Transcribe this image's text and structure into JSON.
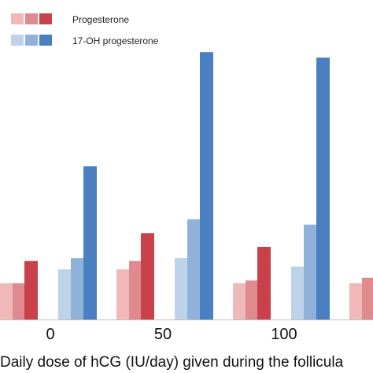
{
  "chart_data": {
    "type": "bar",
    "categories": [
      "0",
      "50",
      "100",
      ""
    ],
    "xlabel": "Daily dose of hCG (IU/day) given during the follicula",
    "legend": [
      {
        "name": "Progesterone",
        "colors": [
          "#f0b8b8",
          "#de8a8e",
          "#c9424b"
        ]
      },
      {
        "name": "17-OH progesterone",
        "colors": [
          "#bdd3ea",
          "#8fb2da",
          "#4a7fc1"
        ]
      }
    ],
    "series": [
      {
        "group": "Progesterone",
        "color": "#f0b8b8",
        "values": [
          1.3,
          1.8,
          1.3,
          1.3
        ]
      },
      {
        "group": "Progesterone",
        "color": "#de8a8e",
        "values": [
          1.3,
          2.1,
          1.4,
          1.5
        ]
      },
      {
        "group": "Progesterone",
        "color": "#c9424b",
        "values": [
          2.1,
          3.1,
          2.6,
          null
        ]
      },
      {
        "group": "17-OH progesterone",
        "color": "#bdd3ea",
        "values": [
          1.8,
          2.2,
          1.9,
          null
        ]
      },
      {
        "group": "17-OH progesterone",
        "color": "#8fb2da",
        "values": [
          2.2,
          3.6,
          3.4,
          null
        ]
      },
      {
        "group": "17-OH progesterone",
        "color": "#4a7fc1",
        "values": [
          5.5,
          9.6,
          9.4,
          null
        ]
      }
    ],
    "ylim": [
      0,
      10
    ]
  }
}
